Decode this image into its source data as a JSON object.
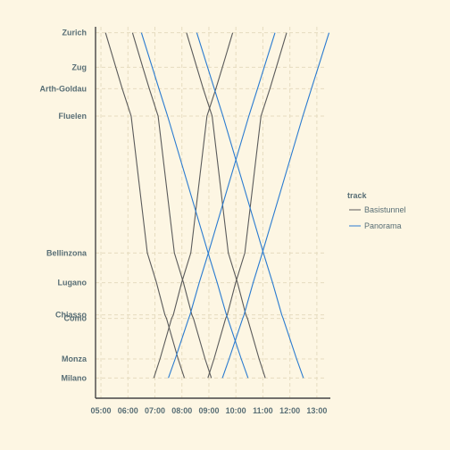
{
  "chart_data": {
    "type": "line",
    "title": "",
    "xlabel": "",
    "ylabel": "",
    "x_tick_labels": [
      "05:00",
      "06:00",
      "07:00",
      "08:00",
      "09:00",
      "10:00",
      "11:00",
      "12:00",
      "13:00"
    ],
    "x_ticks_hours": [
      5,
      6,
      7,
      8,
      9,
      10,
      11,
      12,
      13
    ],
    "xlim_hours": [
      4.8,
      13.5
    ],
    "stations": [
      {
        "name": "Zurich",
        "km": 0
      },
      {
        "name": "Zug",
        "km": 29
      },
      {
        "name": "Arth-Goldau",
        "km": 47
      },
      {
        "name": "Fluelen",
        "km": 70
      },
      {
        "name": "Bellinzona",
        "km": 185
      },
      {
        "name": "Lugano",
        "km": 210
      },
      {
        "name": "Chiasso",
        "km": 237
      },
      {
        "name": "Como",
        "km": 240
      },
      {
        "name": "Monza",
        "km": 274
      },
      {
        "name": "Milano",
        "km": 290
      }
    ],
    "ylim_km": [
      -5,
      307
    ],
    "legend": {
      "title": "track",
      "position": "right"
    },
    "series": [
      {
        "name": "Basistunnel",
        "color": "#5b5b5b",
        "trains": [
          [
            [
              5.17,
              0
            ],
            [
              5.55,
              29
            ],
            [
              5.79,
              47
            ],
            [
              6.12,
              70
            ],
            [
              6.72,
              185
            ],
            [
              7.06,
              210
            ],
            [
              7.37,
              237
            ],
            [
              7.43,
              240
            ],
            [
              7.86,
              274
            ],
            [
              8.09,
              290
            ]
          ],
          [
            [
              6.17,
              0
            ],
            [
              6.55,
              29
            ],
            [
              6.79,
              47
            ],
            [
              7.12,
              70
            ],
            [
              7.72,
              185
            ],
            [
              8.06,
              210
            ],
            [
              8.37,
              237
            ],
            [
              8.43,
              240
            ],
            [
              8.86,
              274
            ],
            [
              9.09,
              290
            ]
          ],
          [
            [
              8.17,
              0
            ],
            [
              8.55,
              29
            ],
            [
              8.79,
              47
            ],
            [
              9.12,
              70
            ],
            [
              9.72,
              185
            ],
            [
              10.06,
              210
            ],
            [
              10.37,
              237
            ],
            [
              10.43,
              240
            ],
            [
              10.86,
              274
            ],
            [
              11.09,
              290
            ]
          ],
          [
            [
              9.88,
              0
            ],
            [
              9.5,
              29
            ],
            [
              9.26,
              47
            ],
            [
              8.93,
              70
            ],
            [
              8.33,
              185
            ],
            [
              7.99,
              210
            ],
            [
              7.68,
              237
            ],
            [
              7.62,
              240
            ],
            [
              7.19,
              274
            ],
            [
              6.96,
              290
            ]
          ],
          [
            [
              11.88,
              0
            ],
            [
              11.5,
              29
            ],
            [
              11.26,
              47
            ],
            [
              10.93,
              70
            ],
            [
              10.33,
              185
            ],
            [
              9.99,
              210
            ],
            [
              9.68,
              237
            ],
            [
              9.62,
              240
            ],
            [
              9.19,
              274
            ],
            [
              8.96,
              290
            ]
          ]
        ]
      },
      {
        "name": "Panorama",
        "color": "#2a7bd0",
        "trains": [
          [
            [
              6.5,
              0
            ],
            [
              6.9,
              29
            ],
            [
              7.15,
              47
            ],
            [
              7.47,
              70
            ],
            [
              8.97,
              185
            ],
            [
              9.31,
              210
            ],
            [
              9.65,
              237
            ],
            [
              9.7,
              240
            ],
            [
              10.2,
              274
            ],
            [
              10.45,
              290
            ]
          ],
          [
            [
              8.55,
              0
            ],
            [
              8.95,
              29
            ],
            [
              9.2,
              47
            ],
            [
              9.52,
              70
            ],
            [
              11.02,
              185
            ],
            [
              11.36,
              210
            ],
            [
              11.7,
              237
            ],
            [
              11.75,
              240
            ],
            [
              12.25,
              274
            ],
            [
              12.5,
              290
            ]
          ],
          [
            [
              11.45,
              0
            ],
            [
              11.05,
              29
            ],
            [
              10.8,
              47
            ],
            [
              10.48,
              70
            ],
            [
              8.98,
              185
            ],
            [
              8.64,
              210
            ],
            [
              8.3,
              237
            ],
            [
              8.25,
              240
            ],
            [
              7.75,
              274
            ],
            [
              7.5,
              290
            ]
          ],
          [
            [
              13.45,
              0
            ],
            [
              13.05,
              29
            ],
            [
              12.8,
              47
            ],
            [
              12.48,
              70
            ],
            [
              10.98,
              185
            ],
            [
              10.64,
              210
            ],
            [
              10.3,
              237
            ],
            [
              10.25,
              240
            ],
            [
              9.75,
              274
            ],
            [
              9.5,
              290
            ]
          ]
        ]
      }
    ]
  }
}
